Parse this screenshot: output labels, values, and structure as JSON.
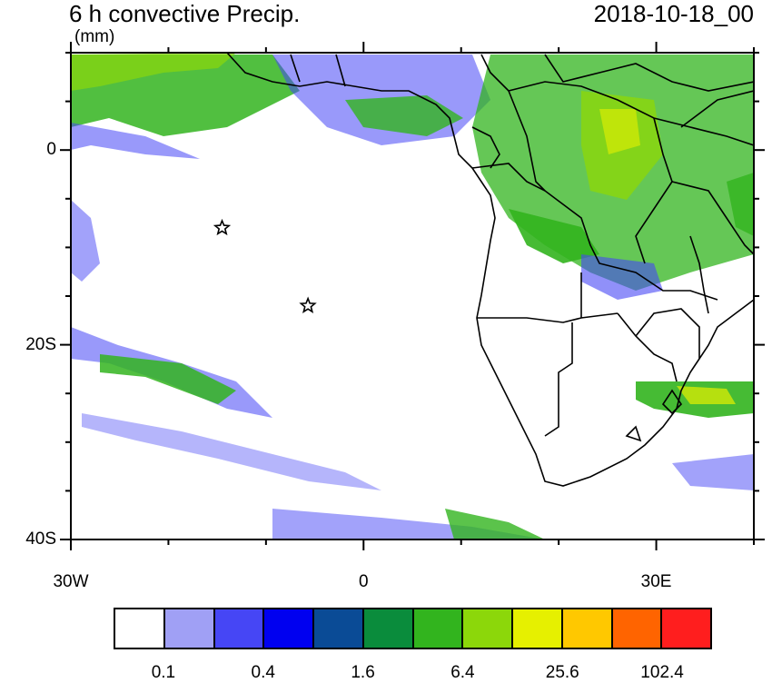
{
  "header": {
    "title": "6 h convective Precip.",
    "units": "(mm)",
    "date": "2018-10-18_00"
  },
  "axes": {
    "y_labels": [
      {
        "text": "0",
        "lat": 0
      },
      {
        "text": "20S",
        "lat": -20
      },
      {
        "text": "40S",
        "lat": -40
      }
    ],
    "x_labels": [
      {
        "text": "30W",
        "lon": -30
      },
      {
        "text": "0",
        "lon": 0
      },
      {
        "text": "30E",
        "lon": 30
      }
    ],
    "lon_range": [
      -30,
      40
    ],
    "lat_range": [
      -40,
      10
    ]
  },
  "markers": [
    {
      "name": "star-marker",
      "lon": -14.5,
      "lat": -8
    },
    {
      "name": "star-marker",
      "lon": -5.7,
      "lat": -16
    }
  ],
  "colorbar": {
    "colors": [
      "#ffffff",
      "#a0a0f5",
      "#4646f5",
      "#0000f0",
      "#0a4b96",
      "#0a8c3c",
      "#32b41e",
      "#8cd70a",
      "#e6f000",
      "#ffc800",
      "#ff6400",
      "#ff1e1e"
    ],
    "labels": [
      "0.1",
      "0.4",
      "1.6",
      "6.4",
      "25.6",
      "102.4"
    ]
  },
  "colors": {
    "precip_light": "#4646f5",
    "precip_mid": "#32b41e",
    "precip_high": "#e6f000",
    "coast": "#000000"
  }
}
